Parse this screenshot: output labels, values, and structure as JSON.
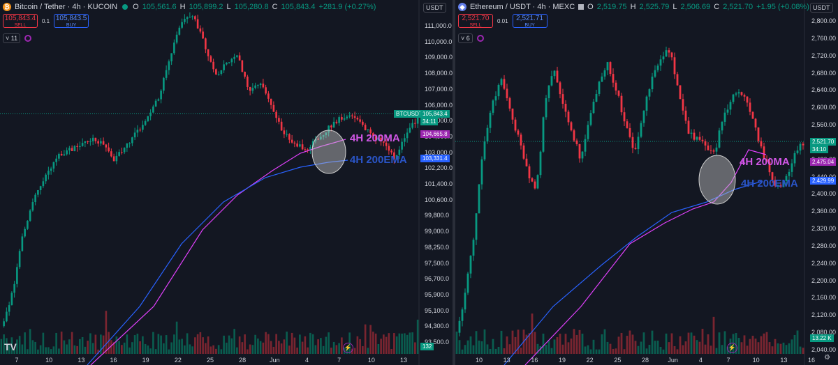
{
  "colors": {
    "up": "#089981",
    "down": "#f23645",
    "ma200": "#e040fb",
    "ema200": "#2962ff",
    "bg": "#131722"
  },
  "left": {
    "symbol": "Bitcoin / Tether · 4h · KUCOIN",
    "ohlc": {
      "o_k": "O",
      "o": "105,561.6",
      "h_k": "H",
      "h": "105,899.2",
      "l_k": "L",
      "l": "105,280.8",
      "c_k": "C",
      "c": "105,843.4",
      "chg": "+281.9 (+0.27%)"
    },
    "sell": {
      "price": "105,843.4",
      "label": "SELL"
    },
    "spread": "0.1",
    "buy": {
      "price": "105,843.5",
      "label": "BUY"
    },
    "indicators_count": "11",
    "unit": "USDT",
    "price_axis": [
      "111,000.0",
      "110,000.0",
      "109,000.0",
      "108,000.0",
      "107,000.0",
      "106,000.0",
      "105,000.0",
      "104,000.0",
      "103,000.0",
      "102,200.0",
      "101,400.0",
      "100,600.0",
      "99,800.0",
      "99,000.0",
      "98,250.0",
      "97,500.0",
      "96,700.0",
      "95,900.0",
      "95,100.0",
      "94,300.0",
      "93,500.0"
    ],
    "tags": {
      "symbol": "BTCUSDT",
      "price": "105,843.4",
      "countdown": "34:11",
      "ma": "104,665.8",
      "ema": "103,331.4",
      "volume": "132"
    },
    "x_axis": [
      "7",
      "10",
      "13",
      "16",
      "19",
      "22",
      "25",
      "28",
      "Jun",
      "4",
      "7",
      "10",
      "13"
    ],
    "annotations": {
      "ma": "4H 200MA",
      "ema": "4H 200EMA"
    },
    "logo": "TV"
  },
  "right": {
    "symbol": "Ethereum / USDT · 4h · MEXC",
    "ohlc": {
      "o_k": "O",
      "o": "2,519.75",
      "h_k": "H",
      "h": "2,525.79",
      "l_k": "L",
      "l": "2,506.69",
      "c_k": "C",
      "c": "2,521.70",
      "chg": "+1.95 (+0.08%)"
    },
    "sell": {
      "price": "2,521.70",
      "label": "SELL"
    },
    "spread": "0.01",
    "buy": {
      "price": "2,521.71",
      "label": "BUY"
    },
    "indicators_count": "6",
    "unit": "USDT",
    "price_axis": [
      "2,800.00",
      "2,760.00",
      "2,720.00",
      "2,680.00",
      "2,640.00",
      "2,600.00",
      "2,560.00",
      "2,520.00",
      "2,480.00",
      "2,440.00",
      "2,400.00",
      "2,360.00",
      "2,320.00",
      "2,280.00",
      "2,240.00",
      "2,200.00",
      "2,160.00",
      "2,120.00",
      "2,080.00",
      "2,040.00"
    ],
    "tags": {
      "price": "2,521.70",
      "countdown": "34:10",
      "ma": "2,475.04",
      "ema": "2,429.99",
      "volume": "13.22 K"
    },
    "x_axis": [
      "10",
      "13",
      "16",
      "19",
      "22",
      "25",
      "28",
      "Jun",
      "4",
      "7",
      "10",
      "13",
      "16"
    ],
    "annotations": {
      "ma": "4H 200MA",
      "ema": "4H 200EMA"
    }
  },
  "icons": [
    "bitcoin-icon",
    "ethereum-icon",
    "live-dot-icon",
    "flag-icon",
    "indicator-icon",
    "lightning-icon",
    "settings-icon"
  ]
}
